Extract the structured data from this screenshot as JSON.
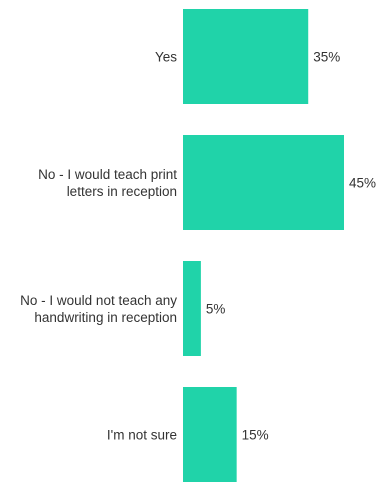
{
  "chart_data": {
    "type": "bar",
    "orientation": "horizontal",
    "title": "",
    "xlabel": "",
    "ylabel": "",
    "categories": [
      [
        "Yes"
      ],
      [
        "No - I would teach print",
        "letters in reception"
      ],
      [
        "No - I would not teach any",
        "handwriting in reception"
      ],
      [
        "I'm not sure"
      ]
    ],
    "values": [
      35,
      45,
      5,
      15
    ],
    "value_labels": [
      "35%",
      "45%",
      "5%",
      "15%"
    ],
    "xlim": [
      0,
      45
    ],
    "grid": false,
    "legend": "none",
    "bar_color": "#20d3a9"
  }
}
